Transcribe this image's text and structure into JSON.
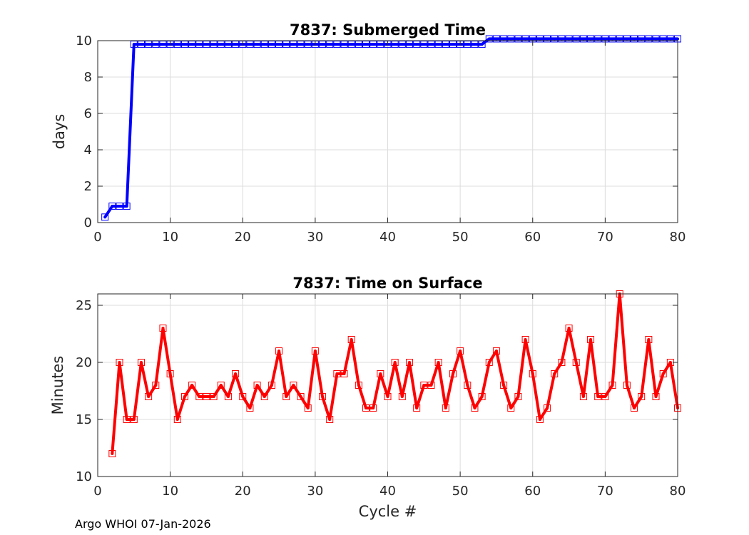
{
  "footer": "Argo WHOI 07-Jan-2026",
  "chart_data": [
    {
      "type": "line",
      "title": "7837: Submerged Time",
      "xlabel": "",
      "ylabel": "days",
      "xlim": [
        0,
        80
      ],
      "ylim": [
        0,
        10
      ],
      "xticks": [
        0,
        10,
        20,
        30,
        40,
        50,
        60,
        70,
        80
      ],
      "yticks": [
        0,
        2,
        4,
        6,
        8,
        10
      ],
      "grid": true,
      "color": "#0000ff",
      "x": [
        1,
        2,
        3,
        4,
        5,
        6,
        7,
        8,
        9,
        10,
        11,
        12,
        13,
        14,
        15,
        16,
        17,
        18,
        19,
        20,
        21,
        22,
        23,
        24,
        25,
        26,
        27,
        28,
        29,
        30,
        31,
        32,
        33,
        34,
        35,
        36,
        37,
        38,
        39,
        40,
        41,
        42,
        43,
        44,
        45,
        46,
        47,
        48,
        49,
        50,
        51,
        52,
        53,
        54,
        55,
        56,
        57,
        58,
        59,
        60,
        61,
        62,
        63,
        64,
        65,
        66,
        67,
        68,
        69,
        70,
        71,
        72,
        73,
        74,
        75,
        76,
        77,
        78,
        79,
        80
      ],
      "y": [
        0.3,
        0.9,
        0.9,
        0.9,
        9.8,
        9.8,
        9.8,
        9.8,
        9.8,
        9.8,
        9.8,
        9.8,
        9.8,
        9.8,
        9.8,
        9.8,
        9.8,
        9.8,
        9.8,
        9.8,
        9.8,
        9.8,
        9.8,
        9.8,
        9.8,
        9.8,
        9.8,
        9.8,
        9.8,
        9.8,
        9.8,
        9.8,
        9.8,
        9.8,
        9.8,
        9.8,
        9.8,
        9.8,
        9.8,
        9.8,
        9.8,
        9.8,
        9.8,
        9.8,
        9.8,
        9.8,
        9.8,
        9.8,
        9.8,
        9.8,
        9.8,
        9.8,
        9.8,
        10.1,
        10.1,
        10.1,
        10.1,
        10.1,
        10.1,
        10.1,
        10.1,
        10.1,
        10.1,
        10.1,
        10.1,
        10.1,
        10.1,
        10.1,
        10.1,
        10.1,
        10.1,
        10.1,
        10.1,
        10.1,
        10.1,
        10.1,
        10.1,
        10.1,
        10.1,
        10.1
      ]
    },
    {
      "type": "line",
      "title": "7837: Time on Surface",
      "xlabel": "Cycle #",
      "ylabel": "Minutes",
      "xlim": [
        0,
        80
      ],
      "ylim": [
        10,
        26
      ],
      "xticks": [
        0,
        10,
        20,
        30,
        40,
        50,
        60,
        70,
        80
      ],
      "yticks": [
        10,
        15,
        20,
        25
      ],
      "grid": true,
      "color": "#ff0000",
      "x": [
        2,
        3,
        4,
        5,
        6,
        7,
        8,
        9,
        10,
        11,
        12,
        13,
        14,
        15,
        16,
        17,
        18,
        19,
        20,
        21,
        22,
        23,
        24,
        25,
        26,
        27,
        28,
        29,
        30,
        31,
        32,
        33,
        34,
        35,
        36,
        37,
        38,
        39,
        40,
        41,
        42,
        43,
        44,
        45,
        46,
        47,
        48,
        49,
        50,
        51,
        52,
        53,
        54,
        55,
        56,
        57,
        58,
        59,
        60,
        61,
        62,
        63,
        64,
        65,
        66,
        67,
        68,
        69,
        70,
        71,
        72,
        73,
        74,
        75,
        76,
        77,
        78,
        79,
        80
      ],
      "y": [
        12,
        20,
        15,
        15,
        20,
        17,
        18,
        23,
        19,
        15,
        17,
        18,
        17,
        17,
        17,
        18,
        17,
        19,
        17,
        16,
        18,
        17,
        18,
        21,
        17,
        18,
        17,
        16,
        21,
        17,
        15,
        19,
        19,
        22,
        18,
        16,
        16,
        19,
        17,
        20,
        17,
        20,
        16,
        18,
        18,
        20,
        16,
        19,
        21,
        18,
        16,
        17,
        20,
        21,
        18,
        16,
        17,
        22,
        19,
        15,
        16,
        19,
        20,
        23,
        20,
        17,
        22,
        17,
        17,
        18,
        26,
        18,
        16,
        17,
        22,
        17,
        19,
        20,
        16
      ]
    }
  ]
}
